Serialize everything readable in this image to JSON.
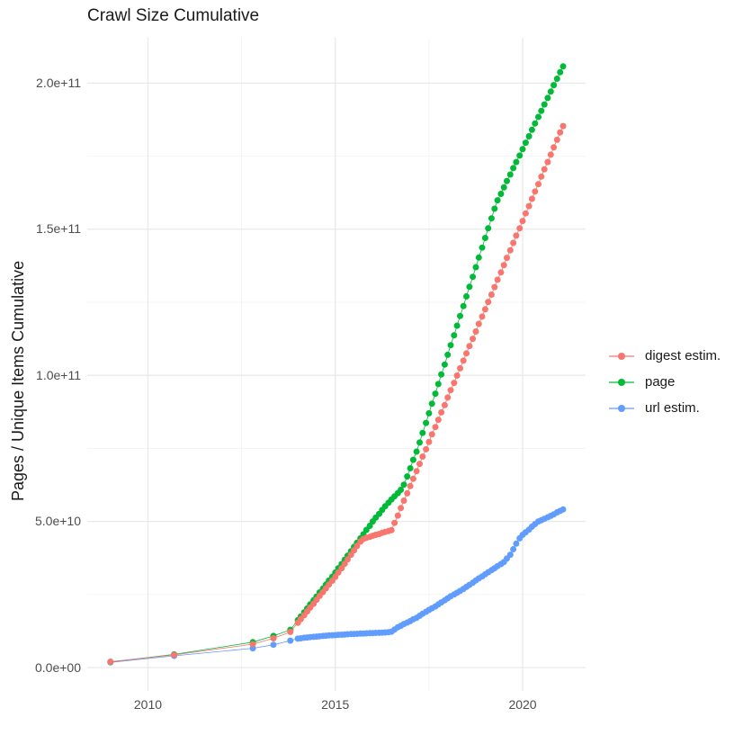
{
  "chart_data": {
    "type": "line",
    "title": "Crawl Size Cumulative",
    "xlabel": "",
    "ylabel": "Pages / Unique Items Cumulative",
    "values_unit": "cumulative count in billions (value × 1e9)",
    "grid": "major+minor light gray on white, no axis lines, no tick marks",
    "legend_position": "right-center",
    "x_axis": {
      "range": [
        2008.38,
        2021.68
      ],
      "ticks": [
        {
          "value": 2010,
          "label": "2010"
        },
        {
          "value": 2015,
          "label": "2015"
        },
        {
          "value": 2020,
          "label": "2020"
        }
      ],
      "minor": [
        2012.5,
        2017.5
      ]
    },
    "y_axis": {
      "range": [
        -8,
        215.5
      ],
      "ticks": [
        {
          "value": 0,
          "label": "0.0e+00"
        },
        {
          "value": 50,
          "label": "5.0e+10"
        },
        {
          "value": 100,
          "label": "1.0e+11"
        },
        {
          "value": 150,
          "label": "1.5e+11"
        },
        {
          "value": 200,
          "label": "2.0e+11"
        }
      ],
      "minor": [
        25,
        75,
        125,
        175
      ]
    },
    "series": [
      {
        "name": "digest estim.",
        "color": "#F8766D",
        "draw_order": 3,
        "points": [
          [
            2009.0,
            2.0
          ],
          [
            2010.7,
            4.3
          ],
          [
            2012.8,
            8.0
          ],
          [
            2013.35,
            10.0
          ],
          [
            2013.8,
            12.2
          ],
          [
            2014.0,
            15.3
          ],
          [
            2014.08,
            16.6
          ],
          [
            2014.17,
            17.9
          ],
          [
            2014.25,
            19.2
          ],
          [
            2014.33,
            20.5
          ],
          [
            2014.42,
            21.8
          ],
          [
            2014.5,
            23.2
          ],
          [
            2014.58,
            24.5
          ],
          [
            2014.67,
            25.8
          ],
          [
            2014.75,
            27.1
          ],
          [
            2014.83,
            28.4
          ],
          [
            2014.92,
            29.7
          ],
          [
            2015.0,
            31.0
          ],
          [
            2015.08,
            32.5
          ],
          [
            2015.17,
            34.0
          ],
          [
            2015.25,
            35.5
          ],
          [
            2015.33,
            37.0
          ],
          [
            2015.42,
            38.6
          ],
          [
            2015.5,
            40.1
          ],
          [
            2015.58,
            41.6
          ],
          [
            2015.67,
            43.1
          ],
          [
            2015.75,
            44.0
          ],
          [
            2015.83,
            44.4
          ],
          [
            2015.92,
            44.7
          ],
          [
            2016.0,
            45.1
          ],
          [
            2016.08,
            45.4
          ],
          [
            2016.17,
            45.7
          ],
          [
            2016.25,
            46.1
          ],
          [
            2016.33,
            46.4
          ],
          [
            2016.42,
            46.7
          ],
          [
            2016.5,
            47.0
          ],
          [
            2016.58,
            49.5
          ],
          [
            2016.67,
            52.0
          ],
          [
            2016.75,
            54.6
          ],
          [
            2016.83,
            57.1
          ],
          [
            2016.92,
            59.6
          ],
          [
            2017.0,
            62.1
          ],
          [
            2017.08,
            64.6
          ],
          [
            2017.17,
            67.2
          ],
          [
            2017.25,
            69.7
          ],
          [
            2017.33,
            72.2
          ],
          [
            2017.42,
            74.7
          ],
          [
            2017.5,
            77.2
          ],
          [
            2017.58,
            79.8
          ],
          [
            2017.67,
            82.3
          ],
          [
            2017.75,
            84.8
          ],
          [
            2017.83,
            87.3
          ],
          [
            2017.92,
            89.8
          ],
          [
            2018.0,
            92.4
          ],
          [
            2018.08,
            94.9
          ],
          [
            2018.17,
            97.4
          ],
          [
            2018.25,
            99.9
          ],
          [
            2018.33,
            102.4
          ],
          [
            2018.42,
            105.0
          ],
          [
            2018.5,
            107.5
          ],
          [
            2018.58,
            110.0
          ],
          [
            2018.67,
            112.5
          ],
          [
            2018.75,
            115.0
          ],
          [
            2018.83,
            117.6
          ],
          [
            2018.92,
            120.1
          ],
          [
            2019.0,
            122.6
          ],
          [
            2019.08,
            125.1
          ],
          [
            2019.17,
            127.6
          ],
          [
            2019.25,
            130.2
          ],
          [
            2019.33,
            132.7
          ],
          [
            2019.42,
            135.2
          ],
          [
            2019.5,
            137.7
          ],
          [
            2019.58,
            140.2
          ],
          [
            2019.67,
            142.8
          ],
          [
            2019.75,
            145.3
          ],
          [
            2019.83,
            147.8
          ],
          [
            2019.92,
            150.3
          ],
          [
            2020.0,
            152.8
          ],
          [
            2020.08,
            155.4
          ],
          [
            2020.17,
            157.9
          ],
          [
            2020.25,
            160.4
          ],
          [
            2020.33,
            162.9
          ],
          [
            2020.42,
            165.4
          ],
          [
            2020.5,
            168.0
          ],
          [
            2020.58,
            170.5
          ],
          [
            2020.67,
            173.0
          ],
          [
            2020.75,
            175.5
          ],
          [
            2020.83,
            178.0
          ],
          [
            2020.92,
            180.6
          ],
          [
            2021.0,
            183.1
          ],
          [
            2021.08,
            185.3
          ]
        ]
      },
      {
        "name": "page",
        "color": "#00BA38",
        "draw_order": 2,
        "points": [
          [
            2009.0,
            1.9
          ],
          [
            2010.7,
            4.5
          ],
          [
            2012.8,
            8.7
          ],
          [
            2013.35,
            10.8
          ],
          [
            2013.8,
            12.9
          ],
          [
            2014.0,
            16.2
          ],
          [
            2014.08,
            17.5
          ],
          [
            2014.17,
            18.9
          ],
          [
            2014.25,
            20.2
          ],
          [
            2014.33,
            21.6
          ],
          [
            2014.42,
            23.0
          ],
          [
            2014.5,
            24.3
          ],
          [
            2014.58,
            25.7
          ],
          [
            2014.67,
            27.0
          ],
          [
            2014.75,
            28.4
          ],
          [
            2014.83,
            29.8
          ],
          [
            2014.92,
            31.1
          ],
          [
            2015.0,
            32.5
          ],
          [
            2015.08,
            34.0
          ],
          [
            2015.17,
            35.4
          ],
          [
            2015.25,
            36.9
          ],
          [
            2015.33,
            38.3
          ],
          [
            2015.42,
            39.8
          ],
          [
            2015.5,
            41.3
          ],
          [
            2015.58,
            42.7
          ],
          [
            2015.67,
            44.2
          ],
          [
            2015.75,
            45.6
          ],
          [
            2015.83,
            47.1
          ],
          [
            2015.92,
            48.5
          ],
          [
            2016.0,
            50.0
          ],
          [
            2016.08,
            51.3
          ],
          [
            2016.17,
            52.6
          ],
          [
            2016.25,
            53.9
          ],
          [
            2016.33,
            55.2
          ],
          [
            2016.42,
            56.4
          ],
          [
            2016.5,
            57.5
          ],
          [
            2016.58,
            58.6
          ],
          [
            2016.67,
            59.7
          ],
          [
            2016.75,
            60.8
          ],
          [
            2016.83,
            62.6
          ],
          [
            2016.92,
            65.4
          ],
          [
            2017.0,
            68.2
          ],
          [
            2017.08,
            71.1
          ],
          [
            2017.17,
            73.9
          ],
          [
            2017.25,
            77.0
          ],
          [
            2017.33,
            80.3
          ],
          [
            2017.42,
            83.7
          ],
          [
            2017.5,
            87.0
          ],
          [
            2017.58,
            90.3
          ],
          [
            2017.67,
            93.7
          ],
          [
            2017.75,
            97.0
          ],
          [
            2017.83,
            100.3
          ],
          [
            2017.92,
            103.7
          ],
          [
            2018.0,
            107.0
          ],
          [
            2018.08,
            110.3
          ],
          [
            2018.17,
            113.7
          ],
          [
            2018.25,
            117.0
          ],
          [
            2018.33,
            120.3
          ],
          [
            2018.42,
            123.7
          ],
          [
            2018.5,
            127.0
          ],
          [
            2018.58,
            130.3
          ],
          [
            2018.67,
            133.7
          ],
          [
            2018.75,
            137.0
          ],
          [
            2018.83,
            140.3
          ],
          [
            2018.92,
            143.7
          ],
          [
            2019.0,
            147.0
          ],
          [
            2019.08,
            150.3
          ],
          [
            2019.17,
            153.7
          ],
          [
            2019.25,
            157.0
          ],
          [
            2019.33,
            159.9
          ],
          [
            2019.42,
            162.1
          ],
          [
            2019.5,
            164.3
          ],
          [
            2019.58,
            166.5
          ],
          [
            2019.67,
            168.7
          ],
          [
            2019.75,
            170.9
          ],
          [
            2019.83,
            173.0
          ],
          [
            2019.92,
            175.2
          ],
          [
            2020.0,
            177.4
          ],
          [
            2020.08,
            179.6
          ],
          [
            2020.17,
            181.8
          ],
          [
            2020.25,
            184.0
          ],
          [
            2020.33,
            186.2
          ],
          [
            2020.42,
            188.4
          ],
          [
            2020.5,
            190.5
          ],
          [
            2020.58,
            192.7
          ],
          [
            2020.67,
            194.9
          ],
          [
            2020.75,
            197.1
          ],
          [
            2020.83,
            199.3
          ],
          [
            2020.92,
            201.5
          ],
          [
            2021.0,
            203.7
          ],
          [
            2021.08,
            205.7
          ]
        ]
      },
      {
        "name": "url estim.",
        "color": "#619CFF",
        "draw_order": 1,
        "points": [
          [
            2009.0,
            1.75
          ],
          [
            2010.7,
            4.0
          ],
          [
            2012.8,
            6.6
          ],
          [
            2013.35,
            7.8
          ],
          [
            2013.8,
            9.2
          ],
          [
            2014.0,
            9.9
          ],
          [
            2014.08,
            10.0
          ],
          [
            2014.17,
            10.2
          ],
          [
            2014.25,
            10.3
          ],
          [
            2014.33,
            10.4
          ],
          [
            2014.42,
            10.5
          ],
          [
            2014.5,
            10.6
          ],
          [
            2014.58,
            10.7
          ],
          [
            2014.67,
            10.8
          ],
          [
            2014.75,
            10.9
          ],
          [
            2014.83,
            11.0
          ],
          [
            2014.92,
            11.05
          ],
          [
            2015.0,
            11.1
          ],
          [
            2015.08,
            11.2
          ],
          [
            2015.17,
            11.25
          ],
          [
            2015.25,
            11.3
          ],
          [
            2015.33,
            11.4
          ],
          [
            2015.42,
            11.45
          ],
          [
            2015.5,
            11.5
          ],
          [
            2015.58,
            11.55
          ],
          [
            2015.67,
            11.6
          ],
          [
            2015.75,
            11.65
          ],
          [
            2015.83,
            11.7
          ],
          [
            2015.92,
            11.75
          ],
          [
            2016.0,
            11.8
          ],
          [
            2016.08,
            11.85
          ],
          [
            2016.17,
            11.9
          ],
          [
            2016.25,
            11.95
          ],
          [
            2016.33,
            12.0
          ],
          [
            2016.42,
            12.1
          ],
          [
            2016.5,
            12.3
          ],
          [
            2016.58,
            13.0
          ],
          [
            2016.67,
            13.8
          ],
          [
            2016.75,
            14.3
          ],
          [
            2016.83,
            14.9
          ],
          [
            2016.92,
            15.4
          ],
          [
            2017.0,
            15.9
          ],
          [
            2017.08,
            16.5
          ],
          [
            2017.17,
            17.0
          ],
          [
            2017.25,
            17.7
          ],
          [
            2017.33,
            18.4
          ],
          [
            2017.42,
            19.1
          ],
          [
            2017.5,
            19.7
          ],
          [
            2017.58,
            20.3
          ],
          [
            2017.67,
            20.9
          ],
          [
            2017.75,
            21.6
          ],
          [
            2017.83,
            22.3
          ],
          [
            2017.92,
            23.0
          ],
          [
            2018.0,
            23.7
          ],
          [
            2018.08,
            24.4
          ],
          [
            2018.17,
            25.0
          ],
          [
            2018.25,
            25.6
          ],
          [
            2018.33,
            26.2
          ],
          [
            2018.42,
            26.9
          ],
          [
            2018.5,
            27.6
          ],
          [
            2018.58,
            28.3
          ],
          [
            2018.67,
            29.0
          ],
          [
            2018.75,
            29.8
          ],
          [
            2018.83,
            30.5
          ],
          [
            2018.92,
            31.2
          ],
          [
            2019.0,
            31.9
          ],
          [
            2019.08,
            32.6
          ],
          [
            2019.17,
            33.3
          ],
          [
            2019.25,
            34.0
          ],
          [
            2019.33,
            34.7
          ],
          [
            2019.42,
            35.4
          ],
          [
            2019.5,
            36.1
          ],
          [
            2019.58,
            37.3
          ],
          [
            2019.67,
            38.6
          ],
          [
            2019.75,
            40.5
          ],
          [
            2019.83,
            42.4
          ],
          [
            2019.92,
            44.2
          ],
          [
            2020.0,
            45.4
          ],
          [
            2020.08,
            46.3
          ],
          [
            2020.17,
            47.2
          ],
          [
            2020.25,
            48.2
          ],
          [
            2020.33,
            49.1
          ],
          [
            2020.42,
            50.0
          ],
          [
            2020.5,
            50.4
          ],
          [
            2020.58,
            50.9
          ],
          [
            2020.67,
            51.4
          ],
          [
            2020.75,
            51.9
          ],
          [
            2020.83,
            52.4
          ],
          [
            2020.92,
            53.1
          ],
          [
            2021.0,
            53.6
          ],
          [
            2021.08,
            54.1
          ]
        ]
      }
    ]
  }
}
